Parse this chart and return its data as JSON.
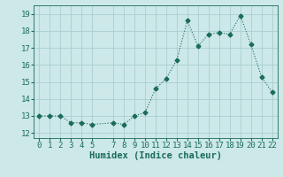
{
  "x": [
    0,
    1,
    2,
    3,
    4,
    5,
    7,
    8,
    9,
    10,
    11,
    12,
    13,
    14,
    15,
    16,
    17,
    18,
    19,
    20,
    21,
    22
  ],
  "y": [
    13,
    13,
    13,
    12.6,
    12.6,
    12.5,
    12.6,
    12.5,
    13.0,
    13.2,
    14.6,
    15.2,
    16.3,
    18.6,
    17.1,
    17.8,
    17.9,
    17.8,
    18.9,
    17.2,
    15.3,
    14.4
  ],
  "xlabel": "Humidex (Indice chaleur)",
  "xlim": [
    -0.5,
    22.5
  ],
  "ylim": [
    11.7,
    19.5
  ],
  "yticks": [
    12,
    13,
    14,
    15,
    16,
    17,
    18,
    19
  ],
  "xticks": [
    0,
    1,
    2,
    3,
    4,
    5,
    7,
    8,
    9,
    10,
    11,
    12,
    13,
    14,
    15,
    16,
    17,
    18,
    19,
    20,
    21,
    22
  ],
  "line_color": "#1a6b5a",
  "marker": "D",
  "marker_size": 2.5,
  "bg_color": "#cce8e8",
  "grid_color": "#aacece",
  "tick_label_fontsize": 6.5,
  "xlabel_fontsize": 7.5
}
